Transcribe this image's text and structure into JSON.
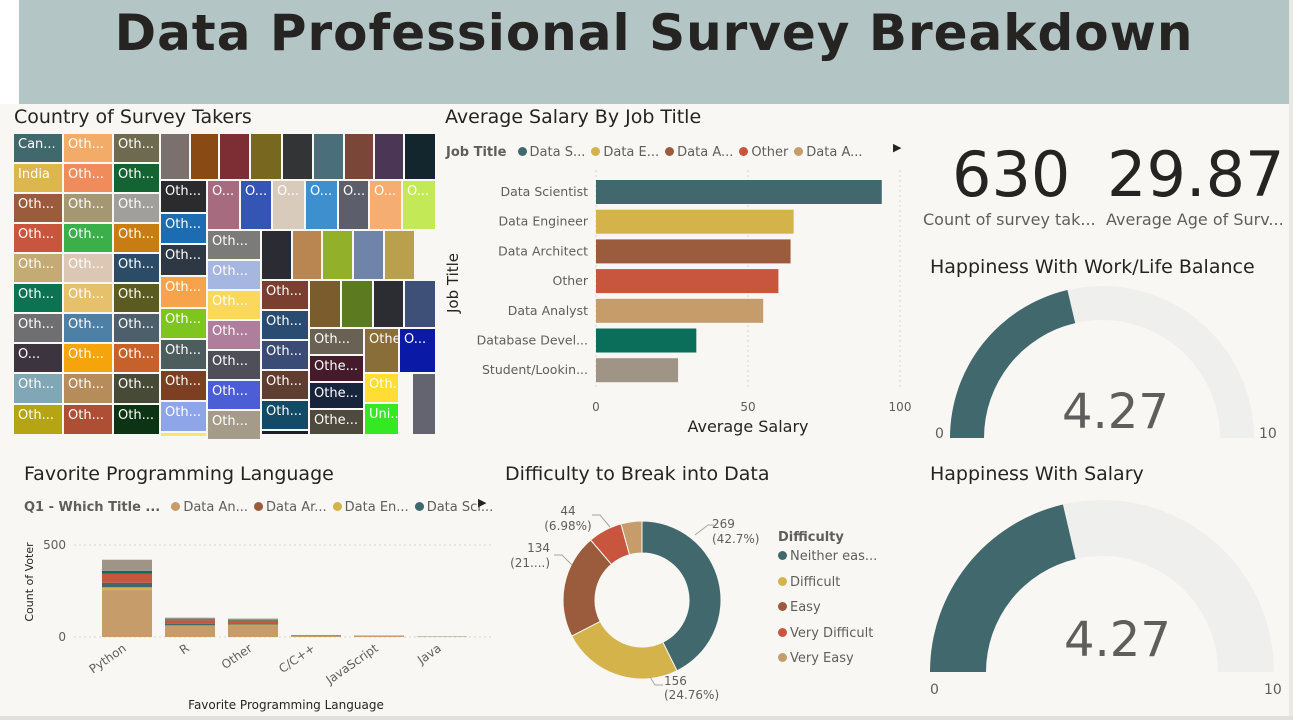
{
  "header": {
    "title": "Data Professional Survey Breakdown"
  },
  "treemap": {
    "title": "Country of Survey Takers",
    "cells": [
      {
        "label": "Can...",
        "color": "#40686d"
      },
      {
        "label": "Oth...",
        "color": "#f3ac67"
      },
      {
        "label": "Oth...",
        "color": "#6e6a4f"
      },
      {
        "label": "",
        "color": "#7a716e"
      },
      {
        "label": "",
        "color": "#8a4a13"
      },
      {
        "label": "",
        "color": "#7d2d34"
      },
      {
        "label": "",
        "color": "#77671f"
      },
      {
        "label": "",
        "color": "#333436"
      },
      {
        "label": "",
        "color": "#4a6e7a"
      },
      {
        "label": "",
        "color": "#7a4637"
      },
      {
        "label": "",
        "color": "#4b3655"
      },
      {
        "label": "",
        "color": "#13262e"
      },
      {
        "label": "India",
        "color": "#dbb74e"
      },
      {
        "label": "Oth...",
        "color": "#f08c5b"
      },
      {
        "label": "Oth...",
        "color": "#136333"
      },
      {
        "label": "Oth...",
        "color": "#2b2b2e"
      },
      {
        "label": "O...",
        "color": "#a66b7f"
      },
      {
        "label": "O...",
        "color": "#3455b4"
      },
      {
        "label": "O...",
        "color": "#d8cbbb"
      },
      {
        "label": "O...",
        "color": "#3e8fce"
      },
      {
        "label": "O...",
        "color": "#5d5e6b"
      },
      {
        "label": "O...",
        "color": "#f5ad72"
      },
      {
        "label": "O...",
        "color": "#c4e957"
      },
      {
        "label": "Oth...",
        "color": "#9a5c3c"
      },
      {
        "label": "Oth...",
        "color": "#a49772"
      },
      {
        "label": "Oth...",
        "color": "#a09f9c"
      },
      {
        "label": "Oth...",
        "color": "#1b6cb0"
      },
      {
        "label": "Oth...",
        "color": "#7b7b79"
      },
      {
        "label": "",
        "color": "#2b2c33"
      },
      {
        "label": "",
        "color": "#b98652"
      },
      {
        "label": "",
        "color": "#92b02a"
      },
      {
        "label": "",
        "color": "#6e84a8"
      },
      {
        "label": "",
        "color": "#b9a04d"
      },
      {
        "label": "Oth...",
        "color": "#c8553e"
      },
      {
        "label": "Oth...",
        "color": "#3aaf4a"
      },
      {
        "label": "Oth...",
        "color": "#c77c14"
      },
      {
        "label": "Oth...",
        "color": "#2e3844"
      },
      {
        "label": "Oth...",
        "color": "#a5b6e0"
      },
      {
        "label": "Oth...",
        "color": "#c4ab73"
      },
      {
        "label": "Oth...",
        "color": "#dcc7b4"
      },
      {
        "label": "Oth...",
        "color": "#2b4b66"
      },
      {
        "label": "Oth...",
        "color": "#f7a34b"
      },
      {
        "label": "Oth...",
        "color": "#f9d85b"
      },
      {
        "label": "Oth...",
        "color": "#7a3f30"
      },
      {
        "label": "",
        "color": "#7b5d2d"
      },
      {
        "label": "",
        "color": "#5c7a1f"
      },
      {
        "label": "",
        "color": "#2b2d33"
      },
      {
        "label": "",
        "color": "#3e4f78"
      },
      {
        "label": "Oth...",
        "color": "#0b7252"
      },
      {
        "label": "Oth...",
        "color": "#e7c06c"
      },
      {
        "label": "Oth...",
        "color": "#5a5a21"
      },
      {
        "label": "Oth...",
        "color": "#7ec51e"
      },
      {
        "label": "Oth...",
        "color": "#af7e9d"
      },
      {
        "label": "Oth...",
        "color": "#2a4c72"
      },
      {
        "label": "Oth...",
        "color": "#6f6f71"
      },
      {
        "label": "Oth...",
        "color": "#4e7fa5"
      },
      {
        "label": "Oth...",
        "color": "#4d5f6a"
      },
      {
        "label": "Oth...",
        "color": "#4d5d5d"
      },
      {
        "label": "Oth...",
        "color": "#4f4f5a"
      },
      {
        "label": "Oth...",
        "color": "#3a4b75"
      },
      {
        "label": "Oth...",
        "color": "#6a6155"
      },
      {
        "label": "Othe...",
        "color": "#8a6e3a"
      },
      {
        "label": "O...",
        "color": "#0a1aa7"
      },
      {
        "label": "O...",
        "color": "#3c3540"
      },
      {
        "label": "Oth...",
        "color": "#f5a50a"
      },
      {
        "label": "Oth...",
        "color": "#c6612b"
      },
      {
        "label": "Oth...",
        "color": "#7d3f21"
      },
      {
        "label": "Oth...",
        "color": "#4b5ed6"
      },
      {
        "label": "Oth...",
        "color": "#5f3d30"
      },
      {
        "label": "Othe...",
        "color": "#451a2b"
      },
      {
        "label": "Oth...",
        "color": "#81a6b5"
      },
      {
        "label": "Oth...",
        "color": "#b78c5b"
      },
      {
        "label": "Oth...",
        "color": "#464a37"
      },
      {
        "label": "Oth...",
        "color": "#8ea5ea"
      },
      {
        "label": "Oth...",
        "color": "#a49c89"
      },
      {
        "label": "Oth...",
        "color": "#134a66"
      },
      {
        "label": "Othe...",
        "color": "#18233c"
      },
      {
        "label": "Oth...",
        "color": "#ffdd33"
      },
      {
        "label": "Oth...",
        "color": "#b5a514"
      },
      {
        "label": "Oth...",
        "color": "#ae4e35"
      },
      {
        "label": "Oth...",
        "color": "#0c3313"
      },
      {
        "label": "Oth...",
        "color": "#ffe46a"
      },
      {
        "label": "Oth...",
        "color": "#154e7a"
      },
      {
        "label": "Oth...",
        "color": "#1e1e24"
      },
      {
        "label": "Othe...",
        "color": "#4e4a3e"
      },
      {
        "label": "Uni...",
        "color": "#34e823"
      },
      {
        "label": "",
        "color": "#646470"
      }
    ]
  },
  "salary": {
    "title": "Average Salary By Job Title",
    "legend_title": "Job Title",
    "legend": [
      {
        "label": "Data S...",
        "color": "#40686d"
      },
      {
        "label": "Data E...",
        "color": "#d4b34a"
      },
      {
        "label": "Data A...",
        "color": "#9a5c3c"
      },
      {
        "label": "Other",
        "color": "#c8553e"
      },
      {
        "label": "Data A...",
        "color": "#c59c6a"
      }
    ]
  },
  "cards": {
    "count_value": "630",
    "count_label": "Count of survey tak...",
    "age_value": "29.87",
    "age_label": "Average Age of Surv..."
  },
  "gauge_worklife": {
    "title": "Happiness With Work/Life Balance",
    "value": 4.27,
    "value_label": "4.27",
    "min_label": "0",
    "max_label": "10",
    "min": 0,
    "max": 10
  },
  "gauge_salary": {
    "title": "Happiness With Salary",
    "value": 4.27,
    "value_label": "4.27",
    "min_label": "0",
    "max_label": "10",
    "min": 0,
    "max": 10
  },
  "language": {
    "title": "Favorite Programming Language",
    "legend_title": "Q1 - Which Title ...",
    "legend": [
      {
        "label": "Data An...",
        "color": "#c59c6a"
      },
      {
        "label": "Data Ar...",
        "color": "#9a5c3c"
      },
      {
        "label": "Data En...",
        "color": "#d4b34a"
      },
      {
        "label": "Data Sci...",
        "color": "#40686d"
      }
    ]
  },
  "difficulty": {
    "title": "Difficulty to Break into Data",
    "legend_title": "Difficulty",
    "slice_labels": [
      {
        "value": "269",
        "pct": "(42.7%)"
      },
      {
        "value": "156",
        "pct": "(24.76%)"
      },
      {
        "value": "134",
        "pct": "(21....)"
      },
      {
        "value": "44",
        "pct": "(6.98%)"
      }
    ]
  },
  "chart_data": [
    {
      "type": "bar",
      "orientation": "horizontal",
      "title": "Average Salary By Job Title",
      "categories": [
        "Data Scientist",
        "Data Engineer",
        "Data Architect",
        "Other",
        "Data Analyst",
        "Database Devel...",
        "Student/Lookin..."
      ],
      "values": [
        94,
        65,
        64,
        60,
        55,
        33,
        27
      ],
      "colors": [
        "#40686d",
        "#d4b34a",
        "#9a5c3c",
        "#c8553e",
        "#c59c6a",
        "#0b6e5a",
        "#a09486"
      ],
      "xlabel": "Average Salary",
      "ylabel": "Job Title",
      "xlim": [
        0,
        100
      ],
      "xticks": [
        "0",
        "50",
        "100"
      ],
      "grid": true
    },
    {
      "type": "bar",
      "stacked": true,
      "title": "Favorite Programming Language",
      "categories": [
        "Python",
        "R",
        "Other",
        "C/C++",
        "JavaScript",
        "Java"
      ],
      "series": [
        {
          "name": "Data An...",
          "color": "#c59c6a",
          "values": [
            255,
            60,
            65,
            6,
            4,
            2
          ]
        },
        {
          "name": "Data Ar...",
          "color": "#9a5c3c",
          "values": [
            0,
            0,
            0,
            2,
            1,
            0
          ]
        },
        {
          "name": "Data En...",
          "color": "#d4b34a",
          "values": [
            15,
            3,
            3,
            1,
            1,
            0
          ]
        },
        {
          "name": "Data Sci...",
          "color": "#40686d",
          "values": [
            25,
            8,
            6,
            1,
            1,
            1
          ]
        },
        {
          "name": "",
          "color": "#c8553e",
          "values": [
            50,
            20,
            15,
            1,
            1,
            0
          ]
        },
        {
          "name": "",
          "color": "#0b6e5a",
          "values": [
            15,
            4,
            3,
            0,
            0,
            0
          ]
        },
        {
          "name": "",
          "color": "#a09486",
          "values": [
            60,
            10,
            8,
            0,
            0,
            0
          ]
        }
      ],
      "xlabel": "Favorite Programming Language",
      "ylabel": "Count of Voter",
      "ylim": [
        0,
        500
      ],
      "yticks": [
        "0",
        "500"
      ],
      "grid": true
    },
    {
      "type": "pie",
      "donut": true,
      "title": "Difficulty to Break into Data",
      "categories": [
        "Neither eas...",
        "Difficult",
        "Easy",
        "Very Difficult",
        "Very Easy"
      ],
      "values": [
        269,
        156,
        134,
        44,
        27
      ],
      "colors": [
        "#40686d",
        "#d4b34a",
        "#9a5c3c",
        "#c8553e",
        "#c59c6a"
      ],
      "legend_position": "right"
    }
  ]
}
